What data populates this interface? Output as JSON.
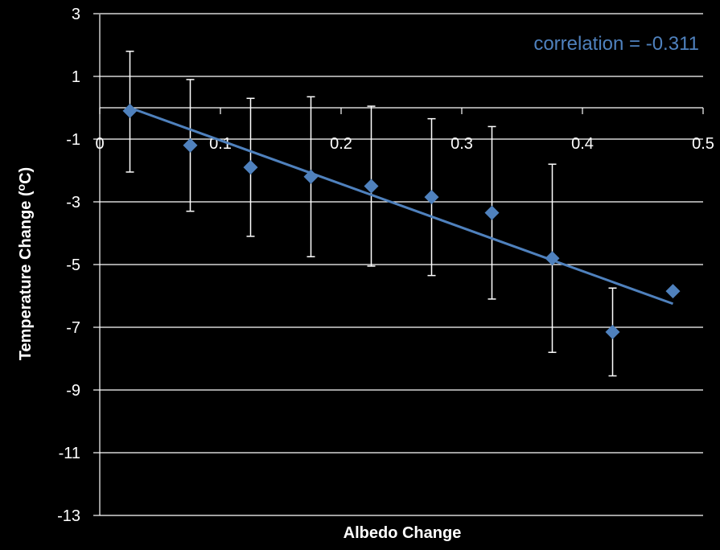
{
  "chart_data": {
    "type": "scatter",
    "title": "",
    "xlabel": "Albedo Change",
    "ylabel_main": "Temperature Change (",
    "ylabel_sup": "o",
    "ylabel_end": "C)",
    "xlim": [
      0,
      0.5
    ],
    "ylim": [
      -13,
      3
    ],
    "x_ticks": [
      0,
      0.1,
      0.2,
      0.3,
      0.4,
      0.5
    ],
    "x_tick_labels": [
      "0",
      "0.1",
      "0.2",
      "0.3",
      "0.4",
      "0.5"
    ],
    "y_ticks": [
      3,
      1,
      -1,
      -3,
      -5,
      -7,
      -9,
      -11,
      -13
    ],
    "y_tick_labels": [
      "3",
      "1",
      "-1",
      "-3",
      "-5",
      "-7",
      "-9",
      "-11",
      "-13"
    ],
    "grid": "horizontal",
    "annotation": "correlation = -0.311",
    "marker_color": "#4f81bd",
    "trendline_color": "#4f81bd",
    "errorbar_color": "#ffffff",
    "points": [
      {
        "x": 0.025,
        "y": -0.1,
        "err_low": 1.95,
        "err_high": 1.9
      },
      {
        "x": 0.075,
        "y": -1.2,
        "err_low": 2.1,
        "err_high": 2.1
      },
      {
        "x": 0.125,
        "y": -1.9,
        "err_low": 2.2,
        "err_high": 2.2
      },
      {
        "x": 0.175,
        "y": -2.2,
        "err_low": 2.55,
        "err_high": 2.55
      },
      {
        "x": 0.225,
        "y": -2.5,
        "err_low": 2.55,
        "err_high": 2.55
      },
      {
        "x": 0.275,
        "y": -2.85,
        "err_low": 2.5,
        "err_high": 2.5
      },
      {
        "x": 0.325,
        "y": -3.35,
        "err_low": 2.75,
        "err_high": 2.75
      },
      {
        "x": 0.375,
        "y": -4.8,
        "err_low": 3.0,
        "err_high": 3.0
      },
      {
        "x": 0.425,
        "y": -7.15,
        "err_low": 1.4,
        "err_high": 1.4
      },
      {
        "x": 0.475,
        "y": -5.85,
        "err_low": 0,
        "err_high": 0
      }
    ],
    "trendline": {
      "x": [
        0.025,
        0.475
      ],
      "y": [
        0.0,
        -6.25
      ]
    }
  }
}
